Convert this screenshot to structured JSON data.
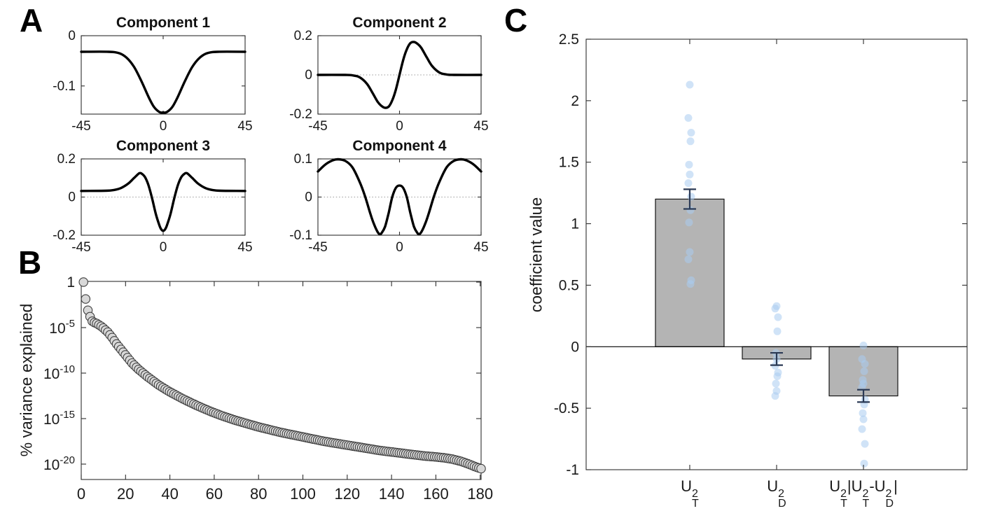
{
  "panels": {
    "a": {
      "label": "A"
    },
    "b": {
      "label": "B",
      "ylabel": "% variance explained"
    },
    "c": {
      "label": "C",
      "ylabel": "coefficient value"
    }
  },
  "colors": {
    "curve": "#000000",
    "axis": "#2e2e2e",
    "tick_text": "#1a1a1a",
    "dotted_zero": "#999999",
    "variance_marker_fill": "#d8d8d8",
    "variance_marker_edge": "#3f3f3f",
    "bar_fill": "#b4b4b4",
    "bar_edge": "#141414",
    "error_bar": "#2b3a55",
    "coef_dot_fill": "#a9ccf0"
  },
  "chart_data": [
    {
      "id": "component1",
      "type": "line",
      "title": "Component 1",
      "xlim": [
        -45,
        45
      ],
      "ylim": [
        -0.156,
        0
      ],
      "x_ticks": [
        -45,
        0,
        45
      ],
      "y_ticks": [
        0,
        -0.1
      ],
      "zero_line": true,
      "points": [
        [
          -45,
          -0.032
        ],
        [
          -30,
          -0.032
        ],
        [
          -24,
          -0.035
        ],
        [
          -20,
          -0.044
        ],
        [
          -16,
          -0.062
        ],
        [
          -12,
          -0.09
        ],
        [
          -8,
          -0.122
        ],
        [
          -5,
          -0.142
        ],
        [
          -2,
          -0.152
        ],
        [
          0,
          -0.153
        ],
        [
          2,
          -0.152
        ],
        [
          5,
          -0.142
        ],
        [
          8,
          -0.122
        ],
        [
          12,
          -0.09
        ],
        [
          16,
          -0.062
        ],
        [
          20,
          -0.044
        ],
        [
          24,
          -0.035
        ],
        [
          30,
          -0.032
        ],
        [
          45,
          -0.032
        ]
      ]
    },
    {
      "id": "component2",
      "type": "line",
      "title": "Component 2",
      "xlim": [
        -45,
        45
      ],
      "ylim": [
        -0.2,
        0.2
      ],
      "x_ticks": [
        -45,
        0,
        45
      ],
      "y_ticks": [
        0.2,
        0,
        -0.2
      ],
      "zero_line": true,
      "points": [
        [
          -45,
          0
        ],
        [
          -30,
          0
        ],
        [
          -26,
          -0.002
        ],
        [
          -22,
          -0.012
        ],
        [
          -18,
          -0.045
        ],
        [
          -15,
          -0.09
        ],
        [
          -12,
          -0.138
        ],
        [
          -10,
          -0.158
        ],
        [
          -8,
          -0.168
        ],
        [
          -6,
          -0.162
        ],
        [
          -4,
          -0.13
        ],
        [
          -2,
          -0.075
        ],
        [
          0,
          0
        ],
        [
          2,
          0.075
        ],
        [
          4,
          0.13
        ],
        [
          6,
          0.162
        ],
        [
          8,
          0.168
        ],
        [
          10,
          0.158
        ],
        [
          12,
          0.138
        ],
        [
          15,
          0.09
        ],
        [
          18,
          0.045
        ],
        [
          22,
          0.012
        ],
        [
          26,
          0.002
        ],
        [
          30,
          0
        ],
        [
          45,
          0
        ]
      ]
    },
    {
      "id": "component3",
      "type": "line",
      "title": "Component 3",
      "xlim": [
        -45,
        45
      ],
      "ylim": [
        -0.2,
        0.2
      ],
      "x_ticks": [
        -45,
        0,
        45
      ],
      "y_ticks": [
        0.2,
        0,
        -0.2
      ],
      "zero_line": true,
      "points": [
        [
          -45,
          0.032
        ],
        [
          -32,
          0.033
        ],
        [
          -27,
          0.037
        ],
        [
          -23,
          0.048
        ],
        [
          -19,
          0.072
        ],
        [
          -16,
          0.1
        ],
        [
          -14,
          0.118
        ],
        [
          -13,
          0.125
        ],
        [
          -12,
          0.124
        ],
        [
          -10,
          0.105
        ],
        [
          -8,
          0.06
        ],
        [
          -6,
          -0.01
        ],
        [
          -4,
          -0.09
        ],
        [
          -2,
          -0.15
        ],
        [
          -1,
          -0.17
        ],
        [
          0,
          -0.177
        ],
        [
          1,
          -0.17
        ],
        [
          2,
          -0.15
        ],
        [
          4,
          -0.09
        ],
        [
          6,
          -0.01
        ],
        [
          8,
          0.06
        ],
        [
          10,
          0.105
        ],
        [
          12,
          0.124
        ],
        [
          13,
          0.125
        ],
        [
          14,
          0.118
        ],
        [
          16,
          0.1
        ],
        [
          19,
          0.072
        ],
        [
          23,
          0.048
        ],
        [
          27,
          0.037
        ],
        [
          32,
          0.033
        ],
        [
          45,
          0.032
        ]
      ]
    },
    {
      "id": "component4",
      "type": "line",
      "title": "Component 4",
      "xlim": [
        -45,
        45
      ],
      "ylim": [
        -0.1,
        0.1
      ],
      "x_ticks": [
        -45,
        0,
        45
      ],
      "y_ticks": [
        0.1,
        0,
        -0.1
      ],
      "zero_line": true,
      "points": [
        [
          -45,
          0.067
        ],
        [
          -41,
          0.085
        ],
        [
          -37,
          0.096
        ],
        [
          -34,
          0.099
        ],
        [
          -30,
          0.095
        ],
        [
          -26,
          0.078
        ],
        [
          -22,
          0.04
        ],
        [
          -19,
          0.002
        ],
        [
          -16,
          -0.045
        ],
        [
          -14,
          -0.072
        ],
        [
          -12,
          -0.092
        ],
        [
          -11,
          -0.097
        ],
        [
          -10,
          -0.095
        ],
        [
          -8,
          -0.078
        ],
        [
          -6,
          -0.042
        ],
        [
          -4,
          0
        ],
        [
          -2,
          0.024
        ],
        [
          0,
          0.03
        ],
        [
          2,
          0.024
        ],
        [
          4,
          0
        ],
        [
          6,
          -0.042
        ],
        [
          8,
          -0.078
        ],
        [
          10,
          -0.095
        ],
        [
          11,
          -0.097
        ],
        [
          12,
          -0.092
        ],
        [
          14,
          -0.072
        ],
        [
          16,
          -0.045
        ],
        [
          19,
          0.002
        ],
        [
          22,
          0.04
        ],
        [
          26,
          0.078
        ],
        [
          30,
          0.095
        ],
        [
          34,
          0.099
        ],
        [
          37,
          0.096
        ],
        [
          41,
          0.085
        ],
        [
          45,
          0.067
        ]
      ]
    },
    {
      "id": "variance_explained",
      "type": "scatter",
      "title": "",
      "ylabel": "% variance explained",
      "y_scale": "log10",
      "xlim": [
        0,
        181
      ],
      "ylim_log10": [
        -21.7,
        0
      ],
      "x_ticks": [
        0,
        20,
        40,
        60,
        80,
        100,
        120,
        140,
        160,
        180
      ],
      "y_tick_exponents": [
        0,
        -5,
        -10,
        -15,
        -20
      ],
      "n_points": 181,
      "anchors_log10": [
        [
          1,
          0
        ],
        [
          2,
          -1.85
        ],
        [
          3,
          -3.1
        ],
        [
          4,
          -3.8
        ],
        [
          5,
          -4.3
        ],
        [
          6,
          -4.45
        ],
        [
          7,
          -4.55
        ],
        [
          8,
          -4.7
        ],
        [
          9,
          -4.85
        ],
        [
          10,
          -5.05
        ],
        [
          12,
          -5.5
        ],
        [
          14,
          -6.1
        ],
        [
          16,
          -6.8
        ],
        [
          18,
          -7.4
        ],
        [
          20,
          -8.0
        ],
        [
          23,
          -8.9
        ],
        [
          26,
          -9.6
        ],
        [
          30,
          -10.4
        ],
        [
          35,
          -11.3
        ],
        [
          40,
          -12.05
        ],
        [
          45,
          -12.7
        ],
        [
          50,
          -13.3
        ],
        [
          55,
          -13.85
        ],
        [
          60,
          -14.35
        ],
        [
          65,
          -14.8
        ],
        [
          70,
          -15.2
        ],
        [
          75,
          -15.55
        ],
        [
          80,
          -15.9
        ],
        [
          85,
          -16.2
        ],
        [
          90,
          -16.5
        ],
        [
          95,
          -16.75
        ],
        [
          100,
          -17.0
        ],
        [
          105,
          -17.25
        ],
        [
          110,
          -17.5
        ],
        [
          115,
          -17.7
        ],
        [
          120,
          -17.9
        ],
        [
          125,
          -18.1
        ],
        [
          130,
          -18.3
        ],
        [
          135,
          -18.5
        ],
        [
          140,
          -18.65
        ],
        [
          145,
          -18.8
        ],
        [
          150,
          -18.95
        ],
        [
          155,
          -19.1
        ],
        [
          160,
          -19.2
        ],
        [
          164,
          -19.3
        ],
        [
          168,
          -19.45
        ],
        [
          172,
          -19.7
        ],
        [
          176,
          -20.05
        ],
        [
          179,
          -20.35
        ],
        [
          181,
          -20.5
        ]
      ]
    },
    {
      "id": "coefficients",
      "type": "bar",
      "title": "",
      "ylabel": "coefficient value",
      "ylim": [
        -1,
        2.5
      ],
      "y_ticks": [
        2.5,
        2,
        1.5,
        1,
        0.5,
        0,
        -0.5,
        -1
      ],
      "categories": [
        "U_T^2",
        "U_D^2",
        "U_T^2|U_T^2-U_D^2|"
      ],
      "categories_segments": [
        [
          {
            "t": "U",
            "sup": "2",
            "sub": "T"
          }
        ],
        [
          {
            "t": "U",
            "sup": "2",
            "sub": "D"
          }
        ],
        [
          {
            "t": "U",
            "sup": "2",
            "sub": "T"
          },
          {
            "t": "|"
          },
          {
            "t": "U",
            "sup": "2",
            "sub": "T"
          },
          {
            "t": "-"
          },
          {
            "t": "U",
            "sup": "2",
            "sub": "D"
          },
          {
            "t": "|"
          }
        ]
      ],
      "values": [
        1.2,
        -0.1,
        -0.4
      ],
      "errors": [
        0.08,
        0.05,
        0.05
      ],
      "scatter_points": [
        [
          2.13,
          1.86,
          1.74,
          1.67,
          1.48,
          1.4,
          1.33,
          1.22,
          1.11,
          1.01,
          0.77,
          0.71,
          0.54,
          0.51
        ],
        [
          0.33,
          0.31,
          0.24,
          0.125,
          -0.05,
          -0.1,
          -0.155,
          -0.21,
          -0.24,
          -0.3,
          -0.36,
          -0.4
        ],
        [
          0.01,
          -0.1,
          -0.14,
          -0.2,
          -0.27,
          -0.3,
          -0.33,
          -0.43,
          -0.47,
          -0.54,
          -0.59,
          -0.67,
          -0.79,
          -0.95
        ]
      ]
    }
  ]
}
